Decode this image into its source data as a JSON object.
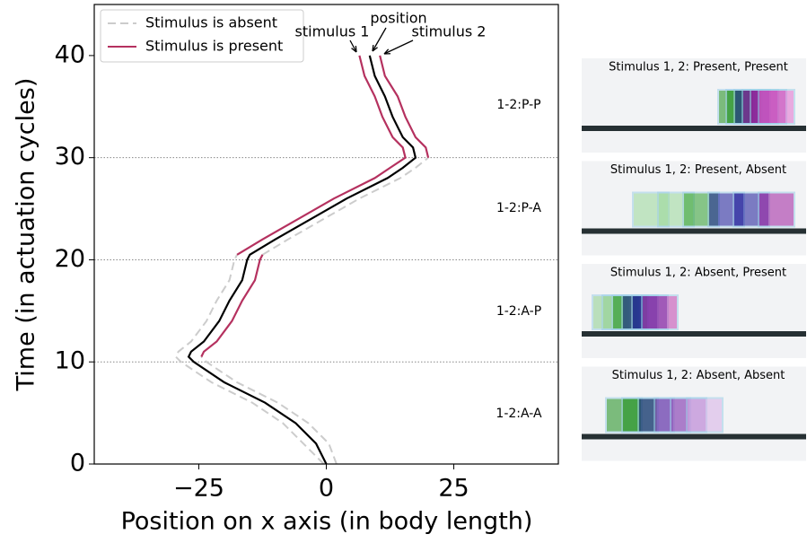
{
  "chart_data": {
    "type": "line",
    "xlabel": "Position on x axis (in body length)",
    "ylabel": "Time (in actuation cycles)",
    "xlim": [
      -45.5,
      45.5
    ],
    "ylim": [
      0,
      45
    ],
    "xticks": [
      {
        "value": -25,
        "label": "−25"
      },
      0,
      25
    ],
    "yticks": [
      0,
      10,
      20,
      30,
      40
    ],
    "hlines": [
      10,
      20,
      30
    ],
    "legend_corner": "upper left",
    "legend": [
      {
        "name": "Stimulus is absent",
        "color": "#cccccc",
        "dashed": true
      },
      {
        "name": "Stimulus is present",
        "color": "#b5315f",
        "dashed": false
      }
    ],
    "series": [
      {
        "color": "#cccccc",
        "dashed": true,
        "y": [
          0,
          2,
          4,
          6,
          8,
          10,
          10.5,
          11,
          12,
          14,
          16,
          18,
          20,
          20.5
        ],
        "x": [
          -0.5,
          -4.5,
          -8.5,
          -14.5,
          -22.5,
          -28.5,
          -29.5,
          -29,
          -26.5,
          -23.5,
          -21.5,
          -19,
          -18,
          -17.5
        ]
      },
      {
        "color": "#cccccc",
        "dashed": true,
        "y": [
          0,
          2,
          4,
          6,
          8,
          10,
          10.5
        ],
        "x": [
          2,
          0.5,
          -3.5,
          -9.5,
          -17.5,
          -23.5,
          -24.5
        ]
      },
      {
        "color": "#cccccc",
        "dashed": true,
        "y": [
          20.5,
          22,
          24,
          26,
          28,
          29,
          30
        ],
        "x": [
          -12.5,
          -7.5,
          -0.5,
          6.5,
          14.5,
          17.5,
          20
        ]
      },
      {
        "color": "#b5315f",
        "dashed": false,
        "y": [
          20.5,
          22,
          24,
          26,
          28,
          29,
          30,
          31,
          32,
          34,
          36,
          38,
          40
        ],
        "x": [
          -17.5,
          -12.5,
          -5.5,
          1.5,
          9.5,
          12.5,
          15.5,
          15,
          13,
          11,
          9.5,
          7.5,
          6.5
        ]
      },
      {
        "color": "#b5315f",
        "dashed": false,
        "y": [
          10.5,
          11,
          12,
          14,
          16,
          18,
          20,
          20.5
        ],
        "x": [
          -24.5,
          -24,
          -21.5,
          -18.5,
          -16.5,
          -14,
          -13,
          -12.5
        ]
      },
      {
        "color": "#b5315f",
        "dashed": false,
        "y": [
          30,
          31,
          32,
          34,
          36,
          38,
          40
        ],
        "x": [
          20,
          19.5,
          17.5,
          15.5,
          14,
          11.5,
          10.5
        ]
      },
      {
        "color": "#000000",
        "dashed": false,
        "y": [
          0,
          2,
          4,
          6,
          8,
          10,
          10.5,
          11,
          12,
          14,
          16,
          18,
          20,
          20.5,
          22,
          24,
          26,
          28,
          29,
          30,
          31,
          32,
          34,
          36,
          38,
          40
        ],
        "x": [
          0,
          -2,
          -6,
          -12,
          -20,
          -26,
          -27,
          -26.5,
          -24,
          -21,
          -19,
          -16.5,
          -15.5,
          -15,
          -10,
          -3,
          4,
          12,
          15,
          17.5,
          17,
          15,
          13,
          11.5,
          9.5,
          8.5
        ]
      }
    ],
    "annotations": [
      "stimulus 1",
      "position",
      "stimulus 2"
    ],
    "phases": [
      "1-2:P-P",
      "1-2:P-A",
      "1-2:A-P",
      "1-2:A-A"
    ],
    "panels": [
      "Stimulus 1, 2: Present, Present",
      "Stimulus 1, 2: Present, Absent",
      "Stimulus 1, 2: Absent, Present",
      "Stimulus 1, 2: Absent, Absent"
    ]
  }
}
